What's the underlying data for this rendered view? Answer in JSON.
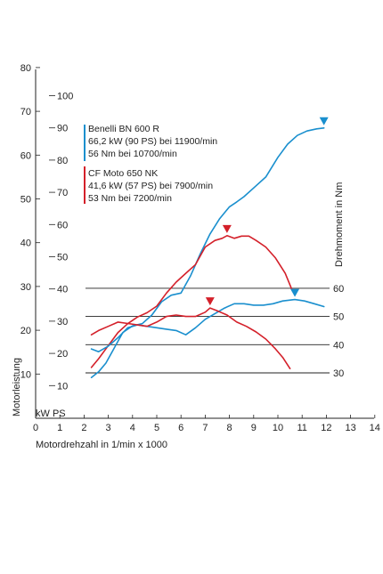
{
  "chart_data": {
    "type": "line",
    "xlabel": "Motordrehzahl in 1/min x 1000",
    "ylabel_power": "Motorleistung",
    "ylabel_torque": "Drehmoment in Nm",
    "unit_label": "kW PS",
    "xlim": [
      0,
      14
    ],
    "x_ticks": [
      "0",
      "1",
      "2",
      "3",
      "4",
      "5",
      "6",
      "7",
      "8",
      "9",
      "10",
      "11",
      "12",
      "13",
      "14"
    ],
    "kw_ticks": [
      "10",
      "20",
      "30",
      "40",
      "50",
      "60",
      "70",
      "80"
    ],
    "ps_ticks": [
      "10",
      "20",
      "30",
      "40",
      "50",
      "60",
      "70",
      "80",
      "90",
      "100"
    ],
    "torque_ticks": [
      "30",
      "40",
      "50",
      "60"
    ],
    "colors": {
      "benelli": "#1a8fce",
      "cfmoto": "#d4202a",
      "grid": "#222222"
    },
    "legend": [
      {
        "key": "benelli",
        "lines": [
          "Benelli BN 600 R",
          "66,2 kW (90 PS) bei 11900/min",
          "56 Nm bei 10700/min"
        ]
      },
      {
        "key": "cfmoto",
        "lines": [
          "CF Moto 650 NK",
          "41,6 kW (57 PS) bei 7900/min",
          "53 Nm bei 7200/min"
        ]
      }
    ],
    "series": [
      {
        "name": "Benelli BN 600 R",
        "key": "benelli",
        "kind": "power_kw",
        "x": [
          2.3,
          2.6,
          2.9,
          3.3,
          3.6,
          4.0,
          4.4,
          4.8,
          5.2,
          5.6,
          6.0,
          6.4,
          6.8,
          7.2,
          7.6,
          8.0,
          8.3,
          8.6,
          9.0,
          9.5,
          10.0,
          10.4,
          10.8,
          11.2,
          11.6,
          11.9
        ],
        "y": [
          9.2,
          10.5,
          12.5,
          16.5,
          19.5,
          21.0,
          21.5,
          23.5,
          26.5,
          28.0,
          28.5,
          32.5,
          37.5,
          42.0,
          45.5,
          48.2,
          49.3,
          50.5,
          52.5,
          55.0,
          59.5,
          62.5,
          64.5,
          65.5,
          66.0,
          66.2
        ]
      },
      {
        "name": "CF Moto 650 NK",
        "key": "cfmoto",
        "kind": "power_kw",
        "x": [
          2.3,
          2.6,
          3.0,
          3.4,
          3.8,
          4.2,
          4.6,
          5.0,
          5.4,
          5.8,
          6.2,
          6.6,
          7.0,
          7.4,
          7.7,
          7.9,
          8.2,
          8.5,
          8.8,
          9.1,
          9.5,
          9.9,
          10.3,
          10.6
        ],
        "y": [
          11.5,
          13.5,
          16.5,
          19.5,
          21.5,
          23.0,
          24.0,
          25.5,
          28.5,
          31.0,
          33.0,
          35.0,
          39.0,
          40.5,
          41.0,
          41.6,
          41.0,
          41.5,
          41.5,
          40.5,
          39.0,
          36.5,
          33.0,
          29.0
        ]
      },
      {
        "name": "Benelli BN 600 R",
        "key": "benelli",
        "kind": "torque_nm",
        "x": [
          2.3,
          2.6,
          3.0,
          3.4,
          3.8,
          4.2,
          4.6,
          5.0,
          5.4,
          5.8,
          6.2,
          6.6,
          7.0,
          7.4,
          7.8,
          8.2,
          8.6,
          9.0,
          9.4,
          9.8,
          10.2,
          10.7,
          11.1,
          11.5,
          11.9
        ],
        "y": [
          38.5,
          37.5,
          39.5,
          42.5,
          46.0,
          47.0,
          46.5,
          46.0,
          45.5,
          45.0,
          43.5,
          46.0,
          49.0,
          51.0,
          53.0,
          54.5,
          54.5,
          54.0,
          54.0,
          54.5,
          55.5,
          56.0,
          55.5,
          54.5,
          53.5
        ]
      },
      {
        "name": "CF Moto 650 NK",
        "key": "cfmoto",
        "kind": "torque_nm",
        "x": [
          2.3,
          2.6,
          3.0,
          3.4,
          3.8,
          4.2,
          4.6,
          5.0,
          5.4,
          5.8,
          6.2,
          6.6,
          7.0,
          7.2,
          7.5,
          7.9,
          8.3,
          8.7,
          9.1,
          9.5,
          9.9,
          10.2,
          10.5
        ],
        "y": [
          43.5,
          45.0,
          46.5,
          48.0,
          47.5,
          47.0,
          46.5,
          48.0,
          50.0,
          50.5,
          50.0,
          50.0,
          51.5,
          53.0,
          52.0,
          50.5,
          48.0,
          46.5,
          44.5,
          42.0,
          38.5,
          35.5,
          31.5
        ]
      }
    ],
    "markers": [
      {
        "key": "benelli",
        "kind": "power_kw",
        "x": 11.9,
        "y": 66.2
      },
      {
        "key": "benelli",
        "kind": "torque_nm",
        "x": 10.7,
        "y": 56
      },
      {
        "key": "cfmoto",
        "kind": "power_kw",
        "x": 7.9,
        "y": 41.6
      },
      {
        "key": "cfmoto",
        "kind": "torque_nm",
        "x": 7.2,
        "y": 53
      }
    ],
    "grid": "horizontal lines at torque ticks"
  }
}
